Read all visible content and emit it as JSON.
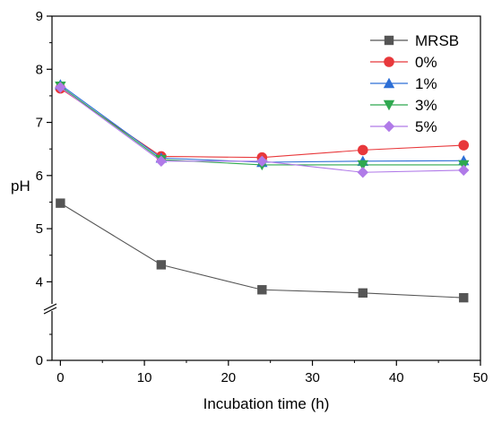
{
  "chart_data": {
    "type": "line",
    "title": "",
    "xlabel": "Incubation time (h)",
    "ylabel": "pH",
    "x": [
      0,
      12,
      24,
      36,
      48
    ],
    "xlim": [
      -1,
      50
    ],
    "ylim": [
      0,
      9
    ],
    "axis_break": [
      3.5,
      3.7
    ],
    "xticks": [
      "0",
      "10",
      "20",
      "30",
      "40",
      "50"
    ],
    "yticks": [
      "0",
      "4",
      "5",
      "6",
      "7",
      "8",
      "9"
    ],
    "grid": false,
    "legend_position": "top-right",
    "series": [
      {
        "name": "MRSB",
        "color": "#555555",
        "marker": "square",
        "values": [
          5.48,
          4.32,
          3.85,
          3.79,
          3.7
        ]
      },
      {
        "name": "0%",
        "color": "#e8383b",
        "marker": "circle",
        "values": [
          7.64,
          6.36,
          6.34,
          6.48,
          6.57
        ]
      },
      {
        "name": "1%",
        "color": "#2d6fd6",
        "marker": "triangle-up",
        "values": [
          7.71,
          6.33,
          6.25,
          6.27,
          6.28
        ]
      },
      {
        "name": "3%",
        "color": "#2fa84f",
        "marker": "triangle-down",
        "values": [
          7.68,
          6.3,
          6.2,
          6.2,
          6.2
        ]
      },
      {
        "name": "5%",
        "color": "#b07ae8",
        "marker": "diamond",
        "values": [
          7.66,
          6.27,
          6.27,
          6.06,
          6.1
        ]
      }
    ]
  }
}
